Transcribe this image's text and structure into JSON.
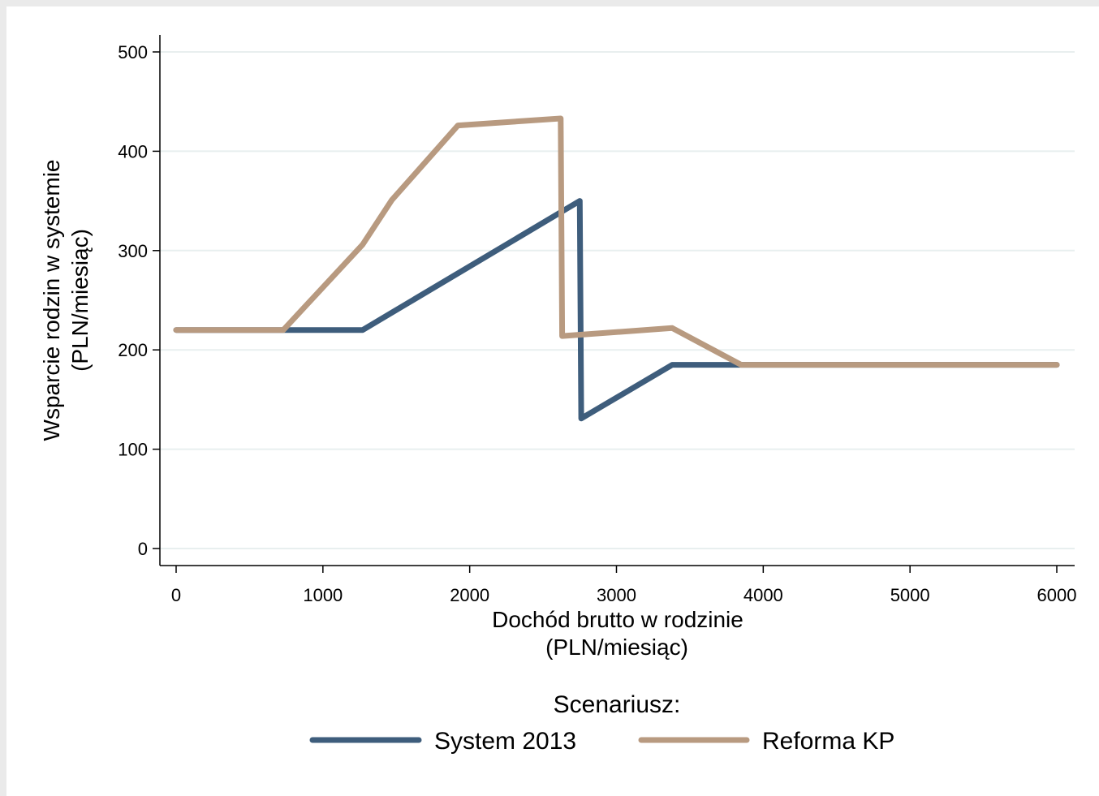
{
  "chart_data": {
    "type": "line",
    "xlabel_lines": [
      "Dochód brutto w rodzinie",
      "(PLN/miesiąc)"
    ],
    "ylabel_lines": [
      "Wsparcie rodzin w systemie",
      "(PLN/miesiąc)"
    ],
    "xlim": [
      0,
      6000
    ],
    "ylim": [
      0,
      500
    ],
    "xticks": [
      0,
      1000,
      2000,
      3000,
      4000,
      5000,
      6000
    ],
    "yticks": [
      0,
      100,
      200,
      300,
      400,
      500
    ],
    "grid": "horizontal",
    "legend": {
      "title": "Scenariusz:",
      "placement": "bottom"
    },
    "series": [
      {
        "name": "System 2013",
        "color": "#3e5d7c",
        "points": [
          [
            0,
            220
          ],
          [
            730,
            220
          ],
          [
            1270,
            220
          ],
          [
            2750,
            350
          ],
          [
            2750,
            349
          ],
          [
            2760,
            131
          ],
          [
            3380,
            185
          ],
          [
            3850,
            185
          ],
          [
            6000,
            185
          ]
        ]
      },
      {
        "name": "Reforma KP",
        "color": "#b89a80",
        "points": [
          [
            0,
            220
          ],
          [
            730,
            220
          ],
          [
            1270,
            306
          ],
          [
            1470,
            351
          ],
          [
            1920,
            426
          ],
          [
            2620,
            433
          ],
          [
            2630,
            214
          ],
          [
            3380,
            222
          ],
          [
            3850,
            185
          ],
          [
            6000,
            185
          ]
        ]
      }
    ]
  }
}
